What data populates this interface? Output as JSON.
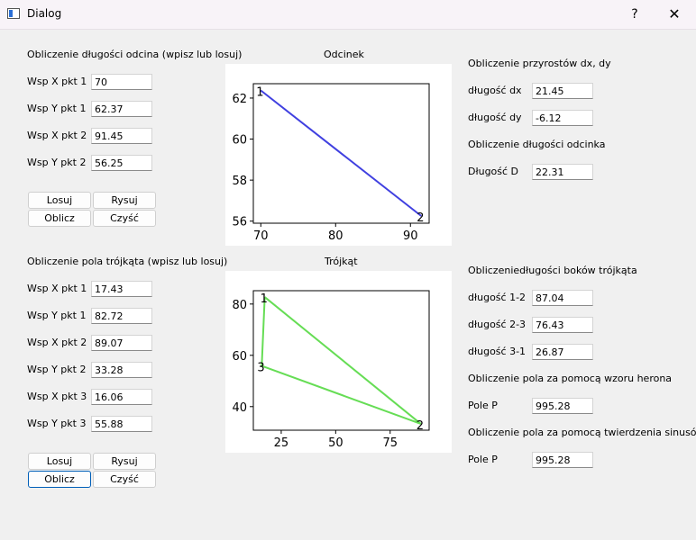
{
  "window": {
    "title": "Dialog",
    "help": "?",
    "close": "✕",
    "icon": "app-window-icon"
  },
  "segment": {
    "heading": "Obliczenie długości odcina (wpisz lub losuj)",
    "fields": [
      {
        "label": "Wsp X pkt 1",
        "value": "70"
      },
      {
        "label": "Wsp Y pkt 1",
        "value": "62.37"
      },
      {
        "label": "Wsp X pkt 2",
        "value": "91.45"
      },
      {
        "label": "Wsp Y pkt 2",
        "value": "56.25"
      }
    ],
    "buttons": {
      "random": "Losuj",
      "draw": "Rysuj",
      "compute": "Oblicz",
      "clear": "Czyść"
    },
    "increments_heading": "Obliczenie przyrostów dx, dy",
    "dx_label": "długość dx",
    "dx_value": "21.45",
    "dy_label": "długość dy",
    "dy_value": "-6.12",
    "length_heading": "Obliczenie długości odcinka",
    "d_label": "Długość D",
    "d_value": "22.31"
  },
  "triangle": {
    "heading": "Obliczenie pola trójkąta (wpisz lub losuj)",
    "fields": [
      {
        "label": "Wsp X pkt 1",
        "value": "17.43"
      },
      {
        "label": "Wsp Y pkt 1",
        "value": "82.72"
      },
      {
        "label": "Wsp X pkt 2",
        "value": "89.07"
      },
      {
        "label": "Wsp Y pkt 2",
        "value": "33.28"
      },
      {
        "label": "Wsp X pkt 3",
        "value": "16.06"
      },
      {
        "label": "Wsp Y pkt 3",
        "value": "55.88"
      }
    ],
    "buttons": {
      "random": "Losuj",
      "draw": "Rysuj",
      "compute": "Oblicz",
      "clear": "Czyść"
    },
    "sides_heading": "Obliczeniedługości boków trójkąta",
    "side12_label": "długość 1-2",
    "side12_value": "87.04",
    "side23_label": "długość 2-3",
    "side23_value": "76.43",
    "side31_label": "długość 3-1",
    "side31_value": "26.87",
    "heron_heading": "Obliczenie pola za pomocą wzoru herona",
    "heron_label": "Pole P",
    "heron_value": "995.28",
    "sine_heading": "Obliczenie pola za pomocą twierdzenia sinusów",
    "sine_label": "Pole P",
    "sine_value": "995.28"
  },
  "chart_data": [
    {
      "type": "line",
      "title": "Odcinek",
      "color": "#4040e0",
      "points": [
        {
          "x": 70,
          "y": 62.37,
          "label": "1"
        },
        {
          "x": 91.45,
          "y": 56.25,
          "label": "2"
        }
      ],
      "closed": false,
      "xlim": [
        69.0,
        92.5
      ],
      "ylim": [
        55.9,
        62.7
      ],
      "xticks": [
        70,
        80,
        90
      ],
      "yticks": [
        56,
        58,
        60,
        62
      ]
    },
    {
      "type": "line",
      "title": "Trójkąt",
      "color": "#66dd55",
      "points": [
        {
          "x": 17.43,
          "y": 82.72,
          "label": "1"
        },
        {
          "x": 89.07,
          "y": 33.28,
          "label": "2"
        },
        {
          "x": 16.06,
          "y": 55.88,
          "label": "3"
        }
      ],
      "closed": true,
      "xlim": [
        12.2,
        92.9
      ],
      "ylim": [
        30.8,
        85.2
      ],
      "xticks": [
        25,
        50,
        75
      ],
      "yticks": [
        40,
        60,
        80
      ]
    }
  ]
}
